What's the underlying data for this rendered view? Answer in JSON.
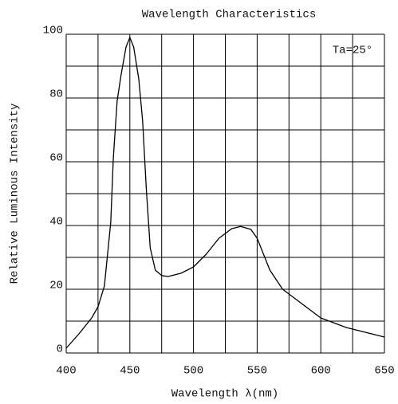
{
  "chart_data": {
    "type": "line",
    "title": "Wavelength Characteristics",
    "xlabel": "Wavelength λ(nm)",
    "ylabel": "Relative Luminous Intensity",
    "annotation": "Ta=25°",
    "x": [
      400,
      410,
      420,
      425,
      430,
      435,
      437,
      440,
      443,
      447,
      450,
      453,
      457,
      460,
      463,
      466,
      470,
      475,
      480,
      490,
      500,
      510,
      520,
      530,
      537,
      545,
      550,
      555,
      560,
      570,
      580,
      600,
      620,
      650
    ],
    "values": [
      1.5,
      6,
      11,
      14.5,
      21,
      41,
      61,
      79,
      87,
      96,
      99,
      96,
      86,
      73,
      51,
      33,
      26,
      24.3,
      24,
      25,
      27,
      31,
      36,
      39,
      39.7,
      38.8,
      36,
      31,
      26,
      20,
      17,
      11,
      8,
      5
    ],
    "color": "#000000",
    "xlim": [
      400,
      650
    ],
    "ylim": [
      0,
      100
    ],
    "xticks": [
      400,
      450,
      500,
      550,
      600,
      650
    ],
    "yticks": [
      0,
      20,
      40,
      60,
      80,
      100
    ],
    "xgrid": [
      400,
      425,
      450,
      475,
      500,
      525,
      550,
      575,
      600,
      625,
      650
    ],
    "ygrid": [
      0,
      10,
      20,
      30,
      40,
      50,
      60,
      70,
      80,
      90,
      100
    ],
    "grid": true
  }
}
